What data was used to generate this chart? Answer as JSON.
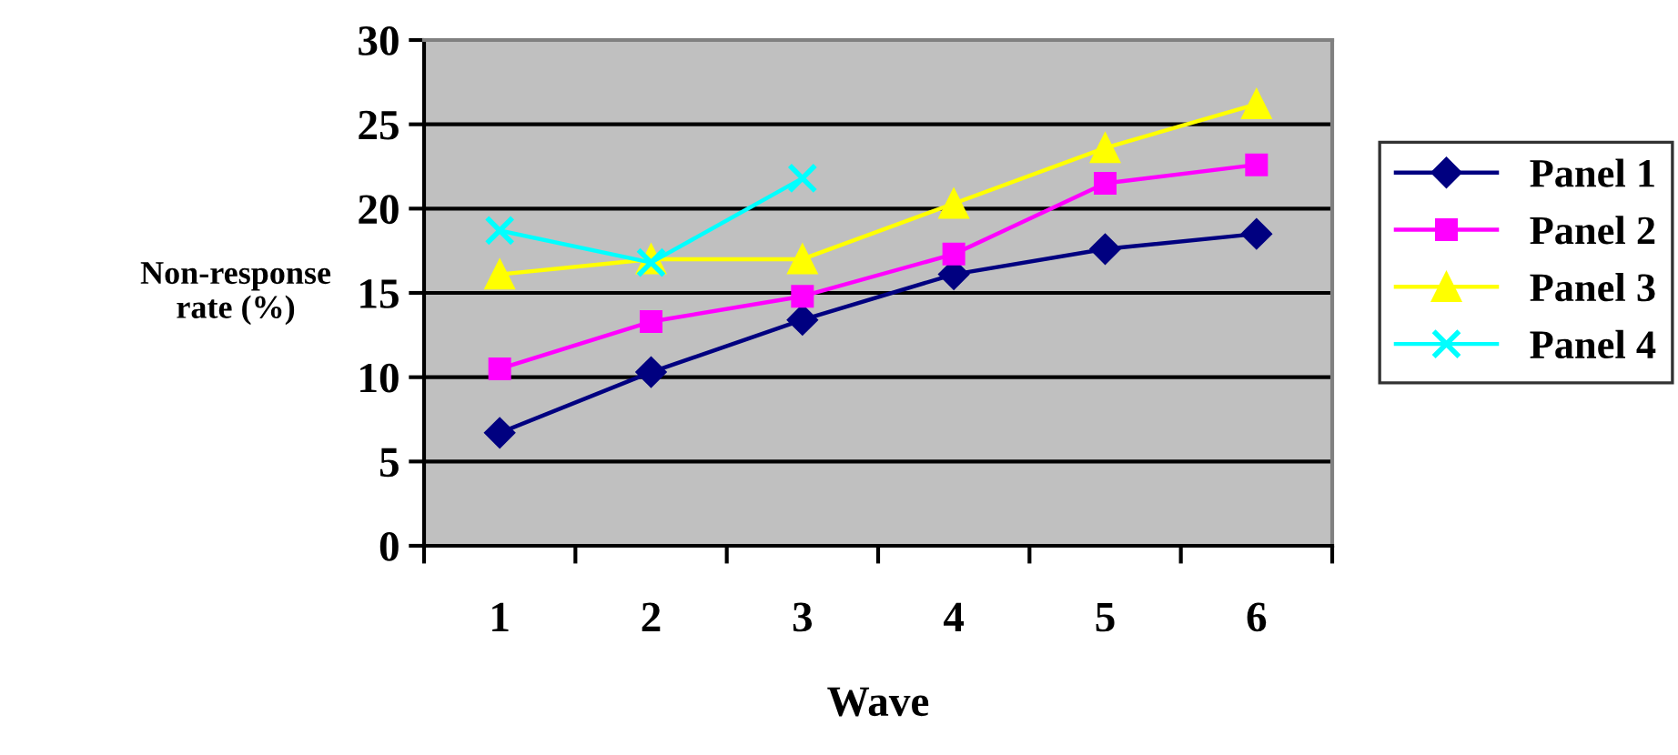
{
  "chart_data": {
    "type": "line",
    "xlabel": "Wave",
    "ylabel": "Non-response\nrate (%)",
    "categories": [
      "1",
      "2",
      "3",
      "4",
      "5",
      "6"
    ],
    "series": [
      {
        "name": "Panel 1",
        "color": "#000080",
        "marker": "diamond",
        "values": [
          6.7,
          10.3,
          13.4,
          16.1,
          17.6,
          18.5
        ]
      },
      {
        "name": "Panel 2",
        "color": "#ff00ff",
        "marker": "square",
        "values": [
          10.5,
          13.3,
          14.8,
          17.3,
          21.5,
          22.6
        ]
      },
      {
        "name": "Panel 3",
        "color": "#ffff00",
        "marker": "triangle",
        "values": [
          16.1,
          17.0,
          17.0,
          20.3,
          23.6,
          26.2
        ]
      },
      {
        "name": "Panel 4",
        "color": "#00ffff",
        "marker": "cross",
        "values": [
          18.7,
          16.8,
          21.8,
          null,
          null,
          null
        ]
      }
    ],
    "ylim": [
      0,
      30
    ],
    "yticks": [
      0,
      5,
      10,
      15,
      20,
      25,
      30
    ],
    "grid": "y",
    "legend": "right"
  }
}
